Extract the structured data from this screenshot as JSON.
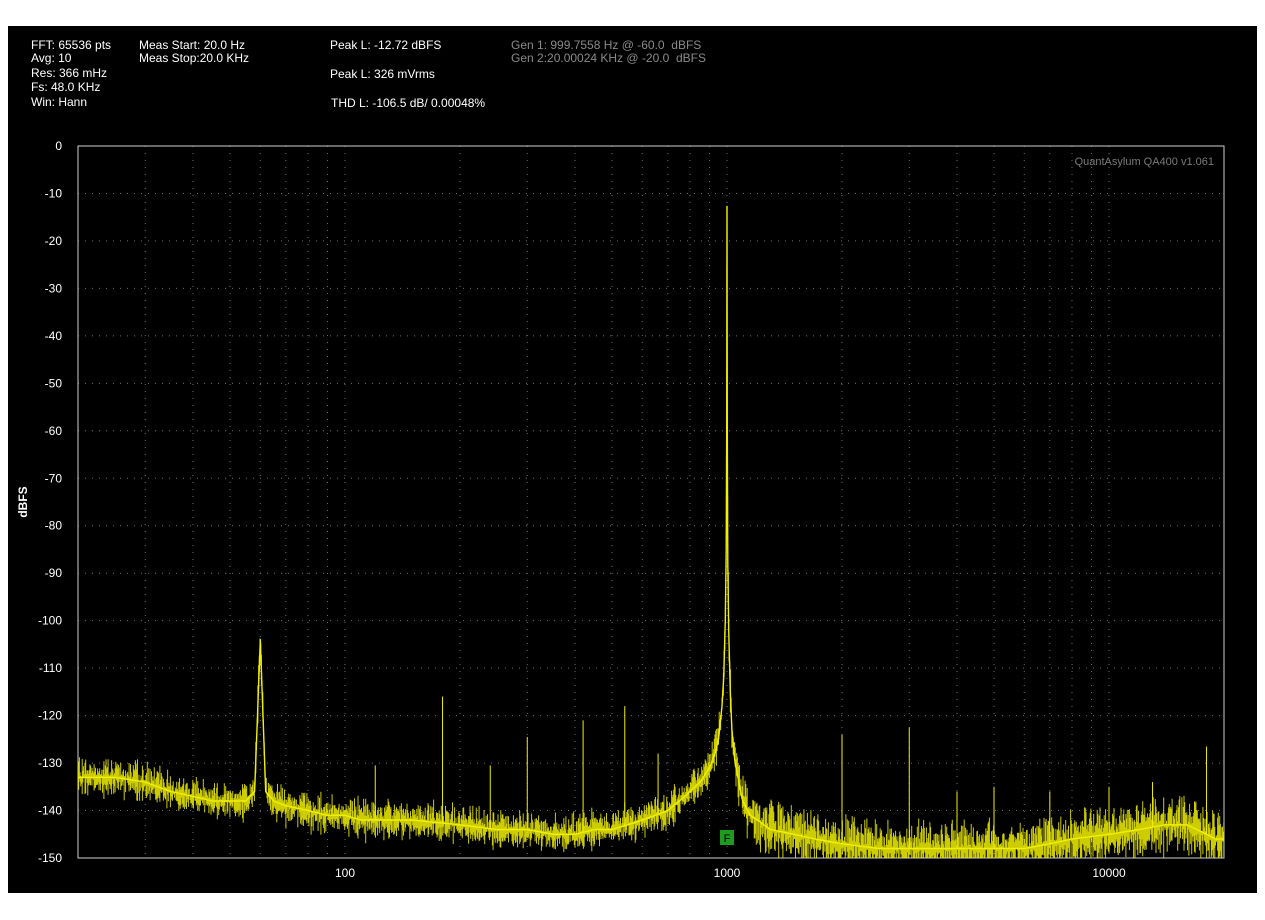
{
  "info": {
    "fft": "FFT: 65536 pts",
    "avg": "Avg: 10",
    "res": "Res: 366 mHz",
    "fs": "Fs: 48.0 KHz",
    "win": "Win: Hann",
    "meas_start": "Meas Start: 20.0 Hz",
    "meas_stop": "Meas Stop:20.0 KHz",
    "peak_dbfs": "Peak L: -12.72 dBFS",
    "peak_vrms": "Peak L: 326 mVrms",
    "thd": "THD L: -106.5 dB/ 0.00048%",
    "gen1": "Gen 1: 999.7558 Hz @ -60.0  dBFS",
    "gen2": "Gen 2:20.00024 KHz @ -20.0  dBFS"
  },
  "watermark": "QuantAsylum QA400 v1.061",
  "marker_label": "F",
  "colors": {
    "trace": "#f0f000",
    "grid": "#707070",
    "border": "#cfcfcf",
    "marker": "#1f9b1f",
    "background": "#000000"
  },
  "chart_data": {
    "type": "line",
    "title": "",
    "xlabel": "",
    "ylabel": "dBFS",
    "xscale": "log",
    "xlim": [
      20,
      20000
    ],
    "ylim": [
      -150,
      0
    ],
    "xticks": [
      100,
      1000,
      10000
    ],
    "yticks": [
      0,
      -10,
      -20,
      -30,
      -40,
      -50,
      -60,
      -70,
      -80,
      -90,
      -100,
      -110,
      -120,
      -130,
      -140,
      -150
    ],
    "grid": true,
    "legend": "none",
    "series": [
      {
        "x": [
          20,
          25,
          30,
          35,
          40,
          45,
          50,
          55,
          58,
          59,
          60,
          61,
          62,
          65,
          70,
          80,
          90,
          100,
          110,
          130,
          150,
          200,
          250,
          300,
          350,
          400,
          450,
          500,
          550,
          600,
          650,
          700,
          750,
          800,
          850,
          900,
          930,
          950,
          970,
          980,
          990,
          995,
          998,
          1000,
          1002,
          1005,
          1010,
          1020,
          1030,
          1050,
          1080,
          1100,
          1150,
          1200,
          1300,
          1500,
          1700,
          2000,
          2500,
          3000,
          4000,
          5000,
          6000,
          7000,
          8000,
          10000,
          12000,
          14000,
          16000,
          18000,
          19000,
          20000
        ],
        "y": [
          -133,
          -133,
          -134,
          -136,
          -137,
          -138,
          -138,
          -138,
          -136,
          -120,
          -104,
          -120,
          -136,
          -138,
          -139,
          -140,
          -141,
          -141,
          -142,
          -142,
          -142,
          -143,
          -144,
          -144,
          -145,
          -145,
          -144,
          -144,
          -143,
          -142,
          -141,
          -140,
          -138,
          -136,
          -134,
          -131,
          -128,
          -125,
          -118,
          -112,
          -100,
          -85,
          -60,
          -12.72,
          -60,
          -88,
          -102,
          -115,
          -123,
          -130,
          -135,
          -138,
          -141,
          -142,
          -144,
          -145,
          -146,
          -147,
          -148,
          -148,
          -148,
          -148,
          -148,
          -147,
          -146,
          -145,
          -144,
          -143,
          -143,
          -145,
          -146,
          -146
        ]
      }
    ],
    "spurs": [
      {
        "x": 60,
        "y": -104
      },
      {
        "x": 120,
        "y": -130.5
      },
      {
        "x": 180,
        "y": -116
      },
      {
        "x": 240,
        "y": -130.5
      },
      {
        "x": 300,
        "y": -124.5
      },
      {
        "x": 420,
        "y": -121
      },
      {
        "x": 540,
        "y": -118
      },
      {
        "x": 660,
        "y": -128
      },
      {
        "x": 2000,
        "y": -124
      },
      {
        "x": 3000,
        "y": -122.5
      },
      {
        "x": 4000,
        "y": -136
      },
      {
        "x": 5000,
        "y": -135
      },
      {
        "x": 7000,
        "y": -136
      },
      {
        "x": 10000,
        "y": -135
      },
      {
        "x": 13000,
        "y": -134
      },
      {
        "x": 18000,
        "y": -126.5
      }
    ],
    "marker": {
      "x": 1000,
      "label": "F"
    }
  }
}
